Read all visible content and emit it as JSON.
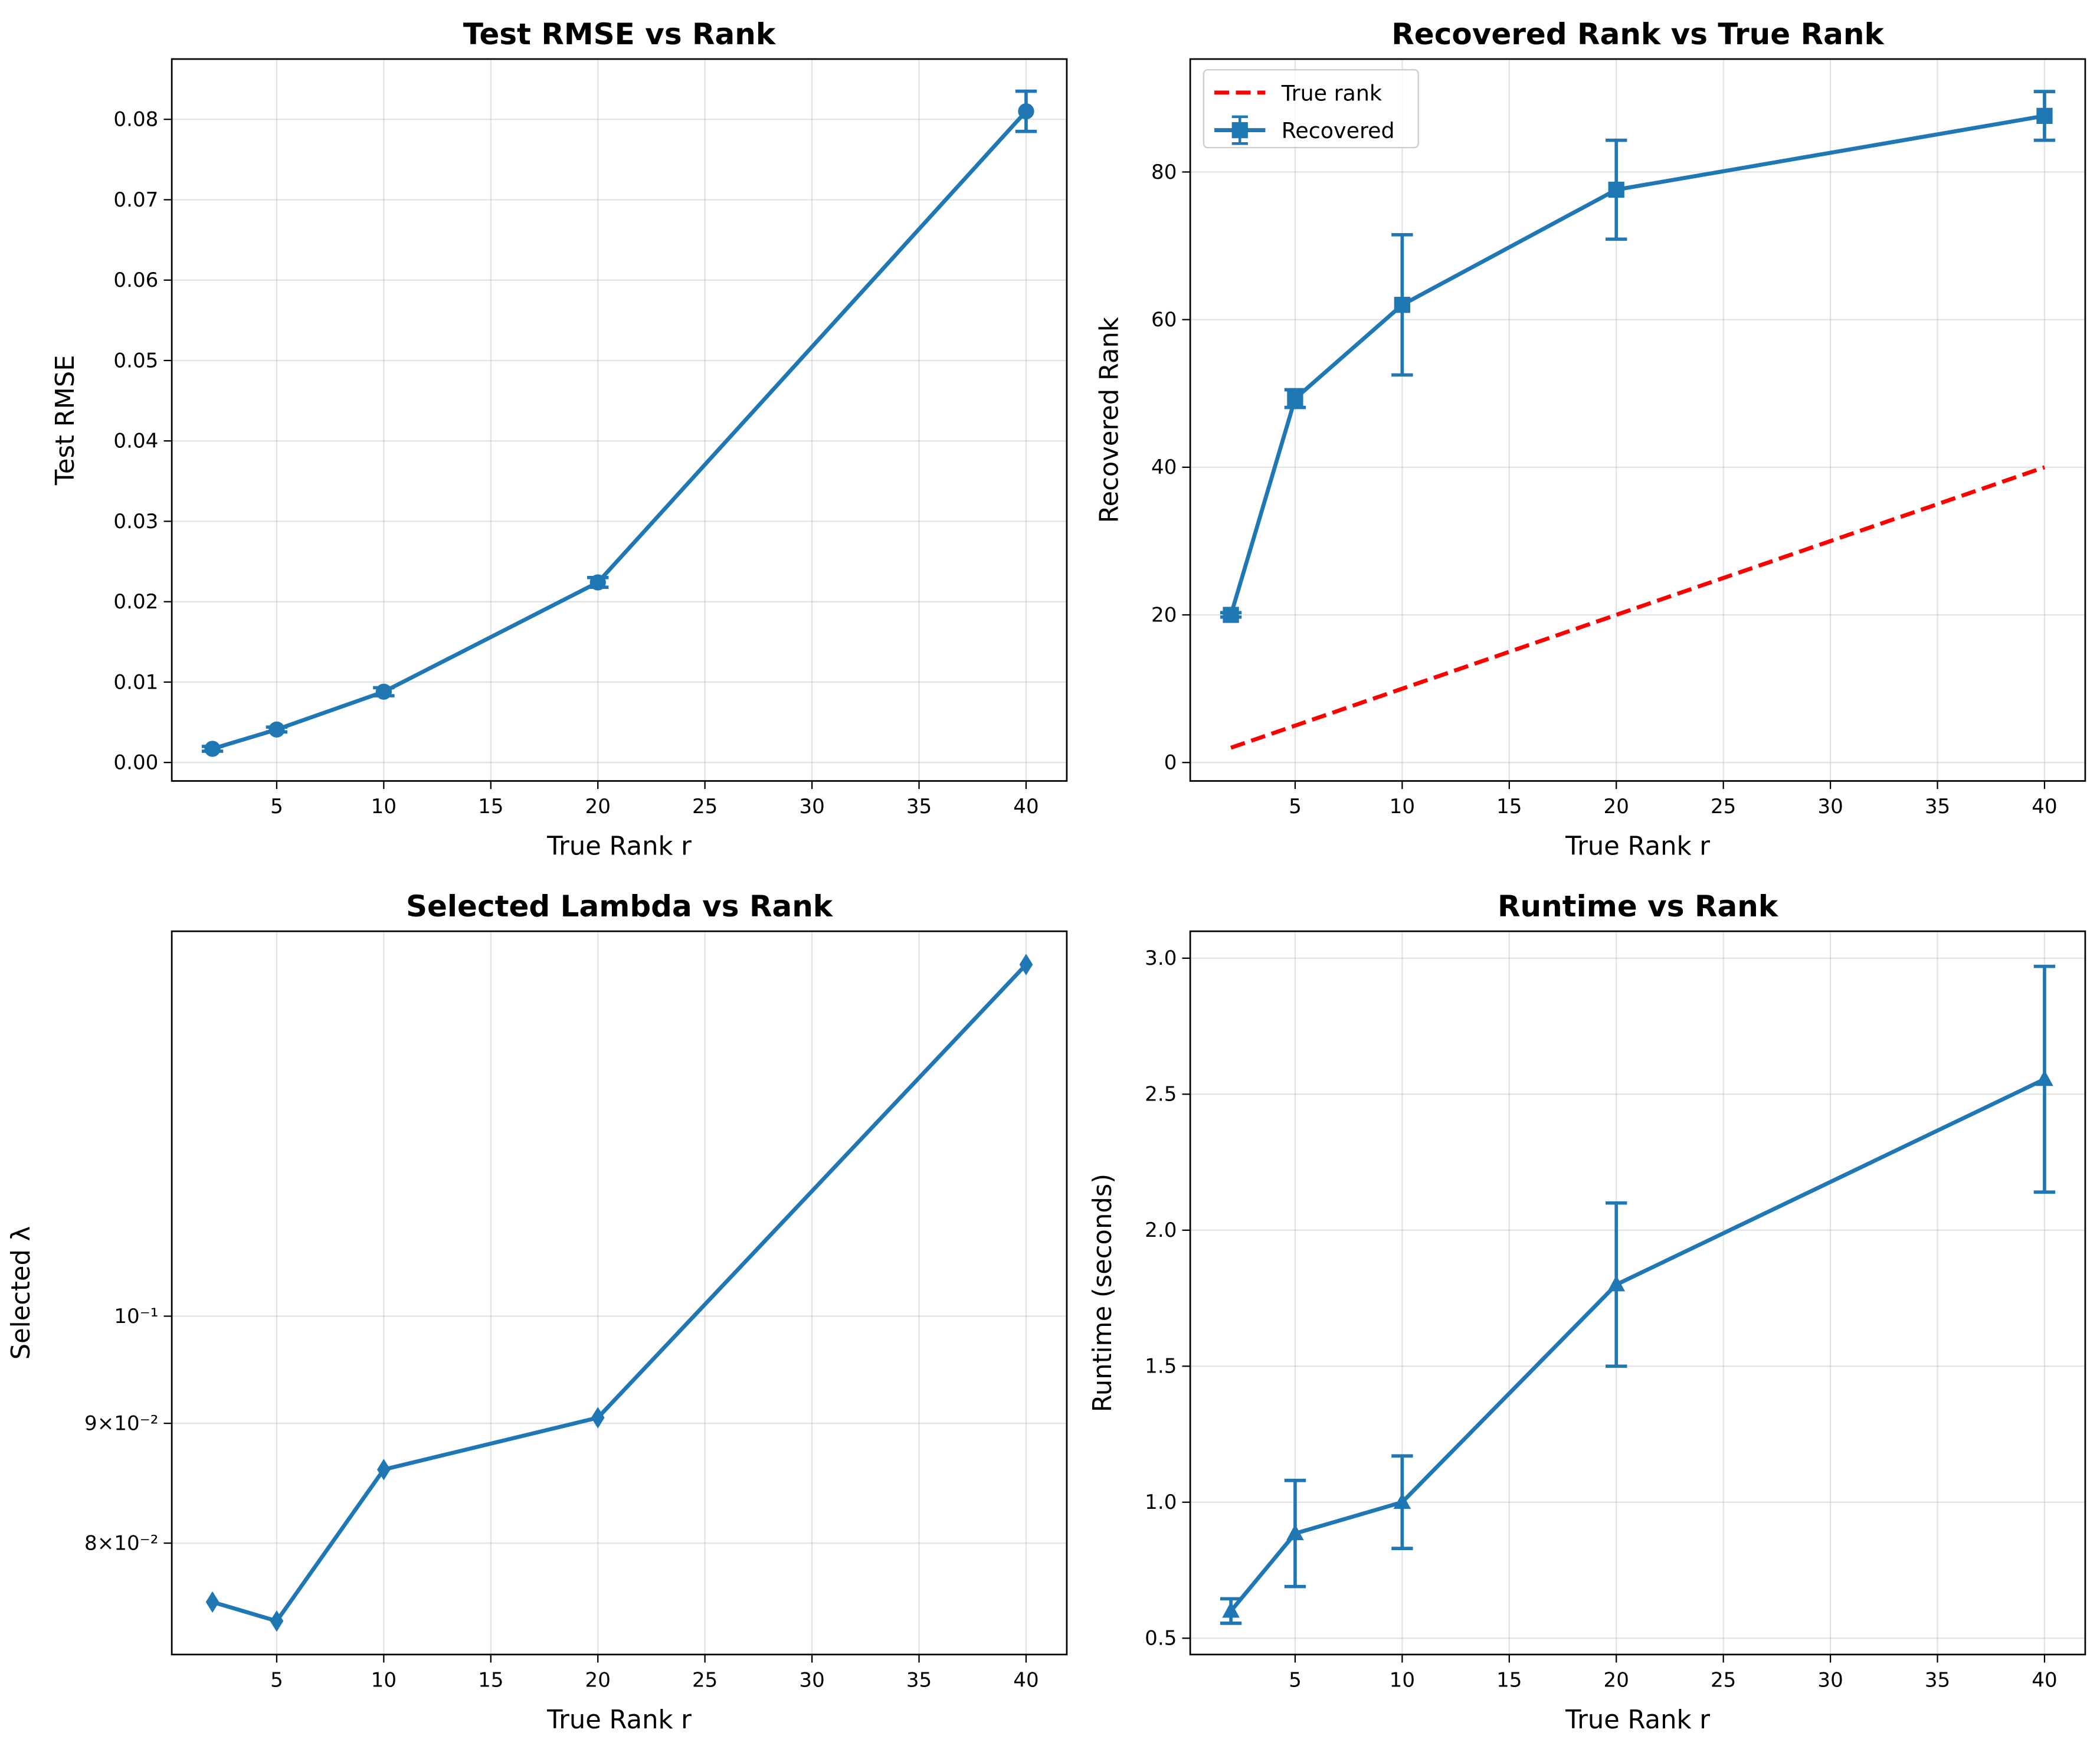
{
  "chart_data": [
    {
      "type": "line",
      "title": "Test RMSE vs Rank",
      "xlabel": "True Rank r",
      "ylabel": "Test RMSE",
      "x": [
        2,
        5,
        10,
        20,
        40
      ],
      "series": [
        {
          "name": "Test RMSE",
          "color": "#1f77b4",
          "marker": "circle",
          "values": [
            0.0017,
            0.0041,
            0.0088,
            0.0224,
            0.081
          ],
          "errors": [
            0.0003,
            0.0003,
            0.0005,
            0.0006,
            0.0025
          ]
        }
      ],
      "xlim": [
        0.1,
        41.9
      ],
      "xticks": [
        5,
        10,
        15,
        20,
        25,
        30,
        35,
        40
      ],
      "ylim": [
        -0.0023,
        0.0875
      ],
      "yticks": [
        {
          "value": 0,
          "label": "0.00"
        },
        {
          "value": 0.01,
          "label": "0.01"
        },
        {
          "value": 0.02,
          "label": "0.02"
        },
        {
          "value": 0.03,
          "label": "0.03"
        },
        {
          "value": 0.04,
          "label": "0.04"
        },
        {
          "value": 0.05,
          "label": "0.05"
        },
        {
          "value": 0.06,
          "label": "0.06"
        },
        {
          "value": 0.07,
          "label": "0.07"
        },
        {
          "value": 0.08,
          "label": "0.08"
        }
      ],
      "grid": true
    },
    {
      "type": "line",
      "title": "Recovered Rank vs True Rank",
      "xlabel": "True Rank r",
      "ylabel": "Recovered Rank",
      "x": [
        2,
        5,
        10,
        20,
        40
      ],
      "series": [
        {
          "name": "True rank",
          "color": "#ff0000",
          "dashed": true,
          "values": [
            2,
            5,
            10,
            20,
            40
          ]
        },
        {
          "name": "Recovered",
          "color": "#1f77b4",
          "marker": "square",
          "values": [
            20,
            49.3,
            62,
            77.6,
            87.6
          ],
          "errors": [
            0.3,
            1.2,
            9.5,
            6.7,
            3.3
          ]
        }
      ],
      "xlim": [
        0.1,
        41.9
      ],
      "xticks": [
        5,
        10,
        15,
        20,
        25,
        30,
        35,
        40
      ],
      "ylim": [
        -2.5,
        95.3
      ],
      "yticks": [
        0,
        20,
        40,
        60,
        80
      ],
      "grid": true,
      "legend": "upper left"
    },
    {
      "type": "line",
      "title": "Selected Lambda vs Rank",
      "xlabel": "True Rank r",
      "ylabel": "Selected λ",
      "x": [
        2,
        5,
        10,
        20,
        40
      ],
      "series": [
        {
          "name": "Selected λ",
          "color": "#1f77b4",
          "marker": "diamond",
          "values": [
            0.0755,
            0.0741,
            0.086,
            0.0905,
            0.1413
          ]
        }
      ],
      "xlim": [
        0.1,
        41.9
      ],
      "xticks": [
        5,
        10,
        15,
        20,
        25,
        30,
        35,
        40
      ],
      "yscale": "log",
      "ylim": [
        0.0717,
        0.146
      ],
      "yticks": [
        {
          "value": 0.08,
          "label": "8×10⁻²"
        },
        {
          "value": 0.09,
          "label": "9×10⁻²"
        },
        {
          "value": 0.1,
          "label": "10⁻¹"
        }
      ],
      "grid": true
    },
    {
      "type": "line",
      "title": "Runtime vs Rank",
      "xlabel": "True Rank r",
      "ylabel": "Runtime (seconds)",
      "x": [
        2,
        5,
        10,
        20,
        40
      ],
      "series": [
        {
          "name": "Runtime",
          "color": "#1f77b4",
          "marker": "triangle",
          "values": [
            0.6,
            0.885,
            1.0,
            1.8,
            2.555
          ],
          "errors": [
            0.045,
            0.195,
            0.17,
            0.3,
            0.415
          ]
        }
      ],
      "xlim": [
        0.1,
        41.9
      ],
      "xticks": [
        5,
        10,
        15,
        20,
        25,
        30,
        35,
        40
      ],
      "ylim": [
        0.44,
        3.099
      ],
      "yticks": [
        0.5,
        {
          "value": 1,
          "label": "1.0"
        },
        1.5,
        {
          "value": 2,
          "label": "2.0"
        },
        2.5,
        {
          "value": 3,
          "label": "3.0"
        }
      ],
      "grid": true
    }
  ]
}
